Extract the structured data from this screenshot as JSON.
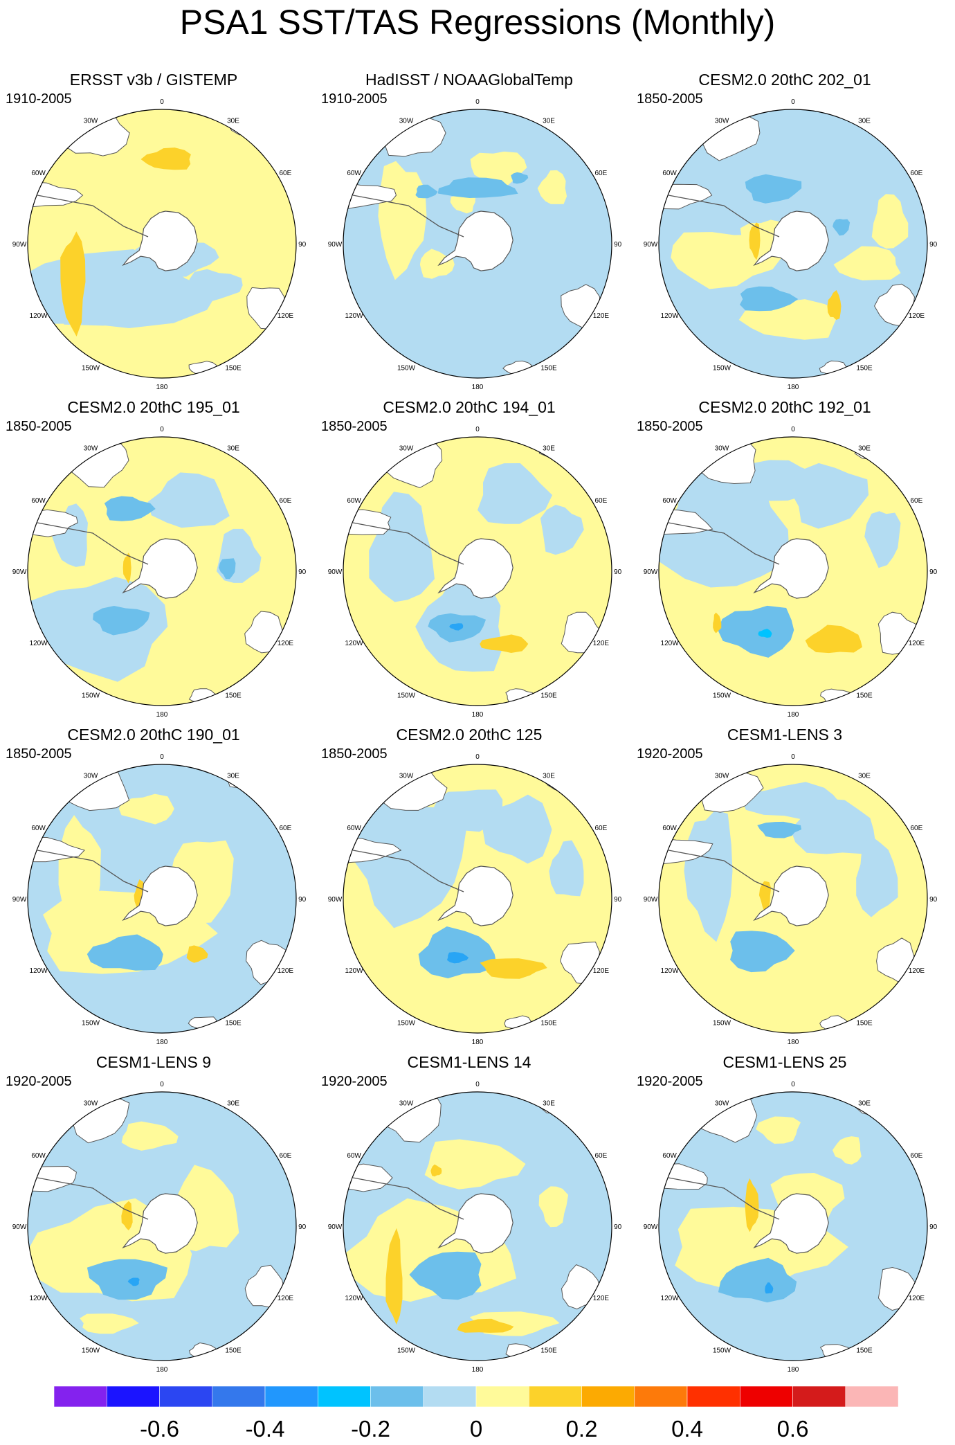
{
  "title": "PSA1 SST/TAS Regressions (Monthly)",
  "longitude_labels": [
    "0",
    "30E",
    "60E",
    "90E",
    "120E",
    "150E",
    "180",
    "150W",
    "120W",
    "90W",
    "60W",
    "30W"
  ],
  "colors": {
    "land": "#ffffff",
    "coast": "#555555",
    "neg_light": "#b3dcf2",
    "neg_mid": "#6cbfeb",
    "neg_strong": "#28a5f5",
    "neg_deep": "#00c3ff",
    "pos_light": "#fffa9a",
    "pos_mid": "#fcd22a"
  },
  "panels": [
    {
      "title": "ERSST v3b / GISTEMP",
      "period": "1910-2005",
      "base": "pos_light",
      "patches": [
        [
          "neg_light",
          -80,
          70,
          150,
          55
        ],
        [
          "neg_light",
          -60,
          75,
          110,
          45
        ],
        [
          "neg_light",
          75,
          60,
          40,
          22
        ],
        [
          "neg_light",
          20,
          20,
          60,
          25
        ],
        [
          "pos_mid",
          -128,
          55,
          18,
          70
        ],
        [
          "pos_mid",
          10,
          -122,
          35,
          16
        ]
      ]
    },
    {
      "title": "HadISST / NOAAGlobalTemp",
      "period": "1910-2005",
      "base": "neg_light",
      "patches": [
        [
          "pos_light",
          -60,
          30,
          25,
          20
        ],
        [
          "pos_light",
          -110,
          -40,
          35,
          80
        ],
        [
          "pos_light",
          30,
          -110,
          40,
          25
        ],
        [
          "pos_light",
          -20,
          -60,
          18,
          15
        ],
        [
          "pos_light",
          110,
          -80,
          20,
          25
        ],
        [
          "neg_mid",
          0,
          -80,
          55,
          15
        ],
        [
          "neg_mid",
          -75,
          -75,
          15,
          10
        ],
        [
          "neg_mid",
          60,
          -95,
          12,
          8
        ]
      ]
    },
    {
      "title": "CESM2.0 20thC 202_01",
      "period": "1850-2005",
      "base": "neg_light",
      "patches": [
        [
          "pos_light",
          -100,
          20,
          80,
          40
        ],
        [
          "pos_light",
          -40,
          -10,
          35,
          25
        ],
        [
          "pos_light",
          0,
          110,
          70,
          28
        ],
        [
          "pos_light",
          110,
          30,
          45,
          25
        ],
        [
          "pos_light",
          140,
          -30,
          25,
          40
        ],
        [
          "neg_mid",
          -40,
          80,
          40,
          18
        ],
        [
          "neg_mid",
          -30,
          -80,
          40,
          20
        ],
        [
          "neg_mid",
          70,
          -25,
          12,
          12
        ],
        [
          "pos_mid",
          -55,
          -5,
          8,
          25
        ],
        [
          "pos_mid",
          60,
          90,
          10,
          20
        ]
      ]
    },
    {
      "title": "CESM2.0 20thC 195_01",
      "period": "1850-2005",
      "base": "pos_light",
      "patches": [
        [
          "neg_light",
          -90,
          80,
          100,
          70
        ],
        [
          "neg_light",
          -130,
          -50,
          25,
          45
        ],
        [
          "neg_light",
          40,
          -100,
          55,
          40
        ],
        [
          "neg_light",
          110,
          -20,
          30,
          40
        ],
        [
          "neg_mid",
          -50,
          -90,
          35,
          18
        ],
        [
          "neg_mid",
          -60,
          70,
          40,
          20
        ],
        [
          "neg_mid",
          95,
          -5,
          12,
          15
        ],
        [
          "pos_mid",
          -50,
          -5,
          6,
          20
        ],
        [
          "pos_mid",
          -15,
          -15,
          10,
          8
        ]
      ]
    },
    {
      "title": "CESM2.0 20thC 194_01",
      "period": "1850-2005",
      "base": "pos_light",
      "patches": [
        [
          "neg_light",
          -20,
          80,
          60,
          70
        ],
        [
          "neg_light",
          -110,
          -30,
          45,
          80
        ],
        [
          "neg_light",
          50,
          -110,
          50,
          45
        ],
        [
          "neg_light",
          120,
          -60,
          30,
          35
        ],
        [
          "neg_mid",
          -30,
          80,
          40,
          20
        ],
        [
          "neg_strong",
          -30,
          80,
          10,
          5
        ],
        [
          "pos_mid",
          40,
          105,
          35,
          12
        ]
      ]
    },
    {
      "title": "CESM2.0 20thC 192_01",
      "period": "1850-2005",
      "base": "pos_light",
      "patches": [
        [
          "neg_light",
          -100,
          -60,
          90,
          90
        ],
        [
          "neg_light",
          -20,
          -130,
          60,
          30
        ],
        [
          "neg_light",
          50,
          -110,
          55,
          45
        ],
        [
          "neg_light",
          130,
          -50,
          25,
          40
        ],
        [
          "neg_mid",
          -50,
          85,
          55,
          35
        ],
        [
          "neg_deep",
          -40,
          90,
          10,
          6
        ],
        [
          "pos_mid",
          60,
          100,
          40,
          20
        ],
        [
          "pos_mid",
          -110,
          75,
          6,
          14
        ]
      ]
    },
    {
      "title": "CESM2.0 20thC 190_01",
      "period": "1850-2005",
      "base": "neg_light",
      "patches": [
        [
          "pos_light",
          -60,
          50,
          120,
          60
        ],
        [
          "pos_light",
          -120,
          -20,
          30,
          100
        ],
        [
          "pos_light",
          60,
          -30,
          45,
          60
        ],
        [
          "pos_light",
          -20,
          -130,
          40,
          20
        ],
        [
          "neg_mid",
          -50,
          80,
          55,
          25
        ],
        [
          "pos_mid",
          -30,
          -5,
          10,
          20
        ],
        [
          "pos_mid",
          50,
          80,
          15,
          12
        ]
      ]
    },
    {
      "title": "CESM2.0 20thC 125",
      "period": "1850-2005",
      "base": "pos_light",
      "patches": [
        [
          "neg_light",
          -100,
          -60,
          80,
          90
        ],
        [
          "neg_light",
          -10,
          -130,
          50,
          30
        ],
        [
          "neg_light",
          60,
          -100,
          50,
          45
        ],
        [
          "neg_light",
          130,
          -40,
          25,
          40
        ],
        [
          "neg_mid",
          -30,
          80,
          55,
          35
        ],
        [
          "neg_strong",
          -30,
          85,
          15,
          8
        ],
        [
          "pos_mid",
          50,
          100,
          45,
          15
        ]
      ]
    },
    {
      "title": "CESM1-LENS 3",
      "period": "1920-2005",
      "base": "pos_light",
      "patches": [
        [
          "neg_light",
          -120,
          -40,
          35,
          90
        ],
        [
          "neg_light",
          0,
          -140,
          70,
          25
        ],
        [
          "neg_light",
          60,
          -100,
          60,
          40
        ],
        [
          "neg_light",
          120,
          -30,
          30,
          55
        ],
        [
          "neg_mid",
          -50,
          75,
          45,
          30
        ],
        [
          "neg_mid",
          -20,
          -100,
          30,
          12
        ],
        [
          "pos_mid",
          -40,
          -5,
          8,
          22
        ]
      ]
    },
    {
      "title": "CESM1-LENS 9",
      "period": "1920-2005",
      "base": "neg_light",
      "patches": [
        [
          "pos_light",
          -70,
          40,
          120,
          70
        ],
        [
          "pos_light",
          60,
          -20,
          50,
          60
        ],
        [
          "pos_light",
          -20,
          -130,
          40,
          20
        ],
        [
          "pos_light",
          -80,
          140,
          40,
          15
        ],
        [
          "neg_mid",
          -50,
          75,
          55,
          30
        ],
        [
          "neg_strong",
          -40,
          80,
          8,
          6
        ],
        [
          "pos_mid",
          -50,
          -15,
          8,
          20
        ]
      ]
    },
    {
      "title": "CESM1-LENS 14",
      "period": "1920-2005",
      "base": "neg_light",
      "patches": [
        [
          "pos_light",
          -70,
          40,
          120,
          70
        ],
        [
          "pos_light",
          -10,
          -90,
          70,
          35
        ],
        [
          "pos_light",
          50,
          140,
          60,
          18
        ],
        [
          "pos_light",
          110,
          -30,
          20,
          30
        ],
        [
          "neg_mid",
          -40,
          70,
          50,
          35
        ],
        [
          "pos_mid",
          -120,
          75,
          12,
          65
        ],
        [
          "pos_mid",
          10,
          145,
          40,
          10
        ],
        [
          "pos_mid",
          -60,
          -80,
          8,
          8
        ]
      ]
    },
    {
      "title": "CESM1-LENS 25",
      "period": "1920-2005",
      "base": "neg_light",
      "patches": [
        [
          "pos_light",
          -60,
          30,
          120,
          60
        ],
        [
          "pos_light",
          20,
          -40,
          50,
          40
        ],
        [
          "pos_light",
          -20,
          -140,
          30,
          20
        ],
        [
          "pos_light",
          80,
          -110,
          20,
          20
        ],
        [
          "neg_mid",
          -50,
          80,
          55,
          30
        ],
        [
          "neg_strong",
          -35,
          90,
          6,
          8
        ],
        [
          "pos_mid",
          -60,
          -30,
          10,
          35
        ]
      ]
    }
  ],
  "colorbar": {
    "colors": [
      "#8422ee",
      "#1b14ff",
      "#2b46f2",
      "#3478ec",
      "#2197fd",
      "#00c3ff",
      "#6cbfeb",
      "#b3dcf2",
      "#fffa9a",
      "#fcd22a",
      "#fcaa02",
      "#fd7a0a",
      "#ff3000",
      "#ee0000",
      "#d41b1b",
      "#fbb6b6"
    ],
    "labels": [
      "-0.6",
      "-0.4",
      "-0.2",
      "0",
      "0.2",
      "0.4",
      "0.6"
    ]
  }
}
